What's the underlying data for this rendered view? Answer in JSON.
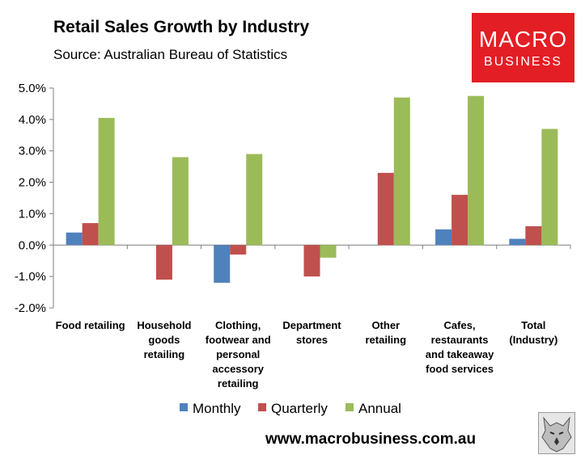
{
  "header": {
    "title": "Retail Sales Growth by Industry",
    "source": "Source: Australian Bureau of Statistics"
  },
  "logo": {
    "line1": "MACRO",
    "line2": "BUSINESS",
    "background": "#e31e24"
  },
  "footer": {
    "url": "www.macrobusiness.com.au"
  },
  "chart_data": {
    "type": "bar",
    "title": "Retail Sales Growth by Industry",
    "xlabel": "",
    "ylabel": "",
    "ylim": [
      -2.0,
      5.0
    ],
    "yticks": [
      "5.0%",
      "4.0%",
      "3.0%",
      "2.0%",
      "1.0%",
      "0.0%",
      "-1.0%",
      "-2.0%"
    ],
    "grid": false,
    "legend_position": "bottom",
    "categories": [
      [
        "Food retailing"
      ],
      [
        "Household",
        "goods",
        "retailing"
      ],
      [
        "Clothing,",
        "footwear and",
        "personal",
        "accessory",
        "retailing"
      ],
      [
        "Department",
        "stores"
      ],
      [
        "Other",
        "retailing"
      ],
      [
        "Cafes,",
        "restaurants",
        "and takeaway",
        "food services"
      ],
      [
        "Total",
        "(Industry)"
      ]
    ],
    "series": [
      {
        "name": "Monthly",
        "color": "#4f81bd",
        "values": [
          0.4,
          0.0,
          -1.2,
          0.0,
          0.0,
          0.5,
          0.2
        ]
      },
      {
        "name": "Quarterly",
        "color": "#c0504d",
        "values": [
          0.7,
          -1.1,
          -0.3,
          -1.0,
          2.3,
          1.6,
          0.6
        ]
      },
      {
        "name": "Annual",
        "color": "#9bbb59",
        "values": [
          4.05,
          2.8,
          2.9,
          -0.4,
          4.7,
          4.75,
          3.7
        ]
      }
    ]
  }
}
